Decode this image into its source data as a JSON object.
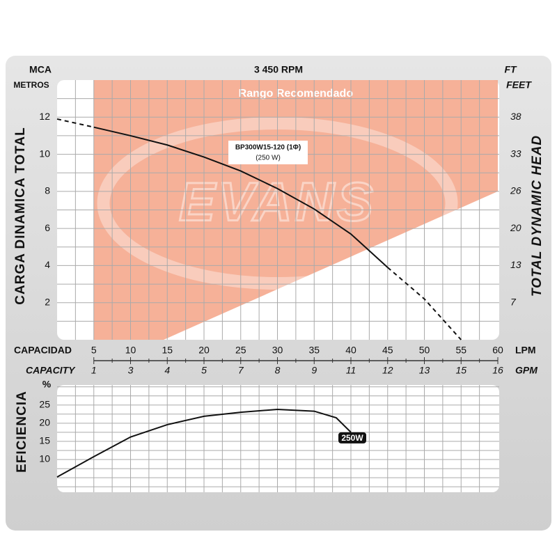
{
  "chart_data": [
    {
      "type": "line",
      "title": "3 450 RPM",
      "yunit": "MCA",
      "yunit_sub": "METROS",
      "ylabel": "CARGA DINAMICA TOTAL",
      "y2unit": "FT",
      "y2unit_sub": "FEET",
      "y2label": "TOTAL DYNAMIC HEAD",
      "xlabel": "CAPACIDAD",
      "xunit": "LPM",
      "x2label": "CAPACITY",
      "x2unit": "GPM",
      "x": [
        0,
        5,
        10,
        15,
        20,
        25,
        30,
        35,
        40,
        45,
        50,
        55
      ],
      "series": [
        {
          "style": "solid",
          "color": "#111111",
          "values": [
            null,
            11.46,
            11.0,
            10.5,
            9.85,
            9.1,
            8.15,
            7.05,
            5.7,
            3.9,
            null,
            null
          ]
        },
        {
          "style": "dashed",
          "color": "#111111",
          "values": [
            11.9,
            11.46,
            null,
            null,
            null,
            null,
            null,
            null,
            null,
            3.9,
            2.2,
            0
          ]
        }
      ],
      "xlim": [
        0,
        60
      ],
      "xticks": [
        5,
        10,
        15,
        20,
        25,
        30,
        35,
        40,
        45,
        50,
        55,
        60
      ],
      "x2_labels": [
        "1",
        "3",
        "4",
        "5",
        "7",
        "8",
        "9",
        "11",
        "12",
        "13",
        "15",
        "16"
      ],
      "ylim": [
        0,
        14
      ],
      "yticks": [
        2,
        4,
        6,
        8,
        10,
        12
      ],
      "y2_labels": [
        "7",
        "13",
        "20",
        "26",
        "33",
        "38"
      ],
      "grid": true,
      "curve_label": "BP300W15-120 (1Φ)",
      "curve_sublabel": "(250 W)",
      "recommended_range": {
        "label": "Rango Recomendado",
        "color": "#f4a386",
        "points": [
          [
            5,
            14
          ],
          [
            60,
            14
          ],
          [
            60,
            8
          ],
          [
            14.5,
            0
          ],
          [
            5,
            0
          ]
        ]
      },
      "watermark": "EVANS"
    },
    {
      "type": "line",
      "ylabel": "EFICIENCIA",
      "yunit": "%",
      "x": [
        0,
        5,
        10,
        15,
        20,
        25,
        30,
        35,
        38,
        40
      ],
      "series": [
        {
          "name": "250W",
          "color": "#111111",
          "values": [
            5.2,
            10.8,
            16.2,
            19.6,
            21.9,
            23.0,
            23.8,
            23.3,
            21.5,
            17.5
          ]
        }
      ],
      "xlim": [
        0,
        60
      ],
      "xticks": [
        5,
        10,
        15,
        20,
        25,
        30,
        35,
        40,
        45,
        50,
        55,
        60
      ],
      "ylim": [
        1,
        30.5
      ],
      "yticks": [
        10,
        15,
        20,
        25
      ],
      "grid": true
    }
  ]
}
